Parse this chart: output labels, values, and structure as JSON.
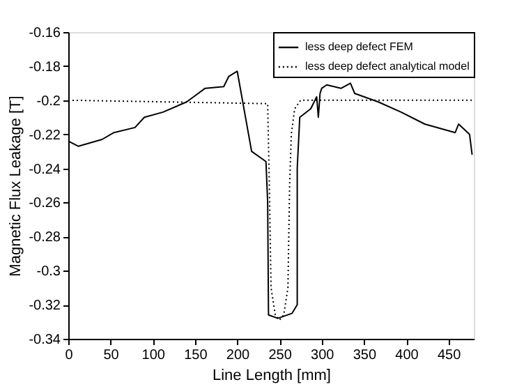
{
  "chart_data": {
    "type": "line",
    "xlabel": "Line Length [mm]",
    "ylabel": "Magnetic Flux Leakage [T]",
    "xlim": [
      0,
      480
    ],
    "xticks": [
      0,
      50,
      100,
      150,
      200,
      250,
      300,
      350,
      400,
      450
    ],
    "ylim": [
      -0.34,
      -0.16
    ],
    "yticks": [
      -0.34,
      -0.32,
      -0.3,
      -0.28,
      -0.26,
      -0.24,
      -0.22,
      -0.2,
      -0.18,
      -0.16
    ],
    "grid": false,
    "legend": "top right",
    "marker": "none",
    "series": [
      {
        "name": "less deep defect FEM",
        "color": "#000000",
        "line_style": "solid",
        "x": [
          0,
          12,
          40,
          54,
          79,
          90,
          112,
          140,
          151,
          162,
          184,
          190,
          200,
          217,
          234,
          236,
          237,
          248,
          265,
          271,
          271,
          274,
          287,
          294,
          296,
          298,
          300,
          306,
          323,
          334,
          339,
          367,
          394,
          422,
          458,
          462,
          475,
          478
        ],
        "values": [
          -0.224,
          -0.227,
          -0.223,
          -0.219,
          -0.216,
          -0.21,
          -0.207,
          -0.201,
          -0.197,
          -0.193,
          -0.192,
          -0.186,
          -0.183,
          -0.23,
          -0.236,
          -0.26,
          -0.326,
          -0.328,
          -0.325,
          -0.32,
          -0.24,
          -0.21,
          -0.205,
          -0.198,
          -0.21,
          -0.196,
          -0.193,
          -0.191,
          -0.193,
          -0.19,
          -0.196,
          -0.201,
          -0.207,
          -0.214,
          -0.219,
          -0.214,
          -0.22,
          -0.232
        ]
      },
      {
        "name": "less deep defect analytical model",
        "color": "#000000",
        "line_style": "dotted",
        "x": [
          0,
          236,
          238,
          240,
          245,
          250,
          255,
          260,
          262,
          264,
          268,
          275,
          480
        ],
        "values": [
          -0.2,
          -0.202,
          -0.25,
          -0.31,
          -0.326,
          -0.329,
          -0.326,
          -0.31,
          -0.25,
          -0.22,
          -0.205,
          -0.2,
          -0.2
        ]
      }
    ]
  }
}
